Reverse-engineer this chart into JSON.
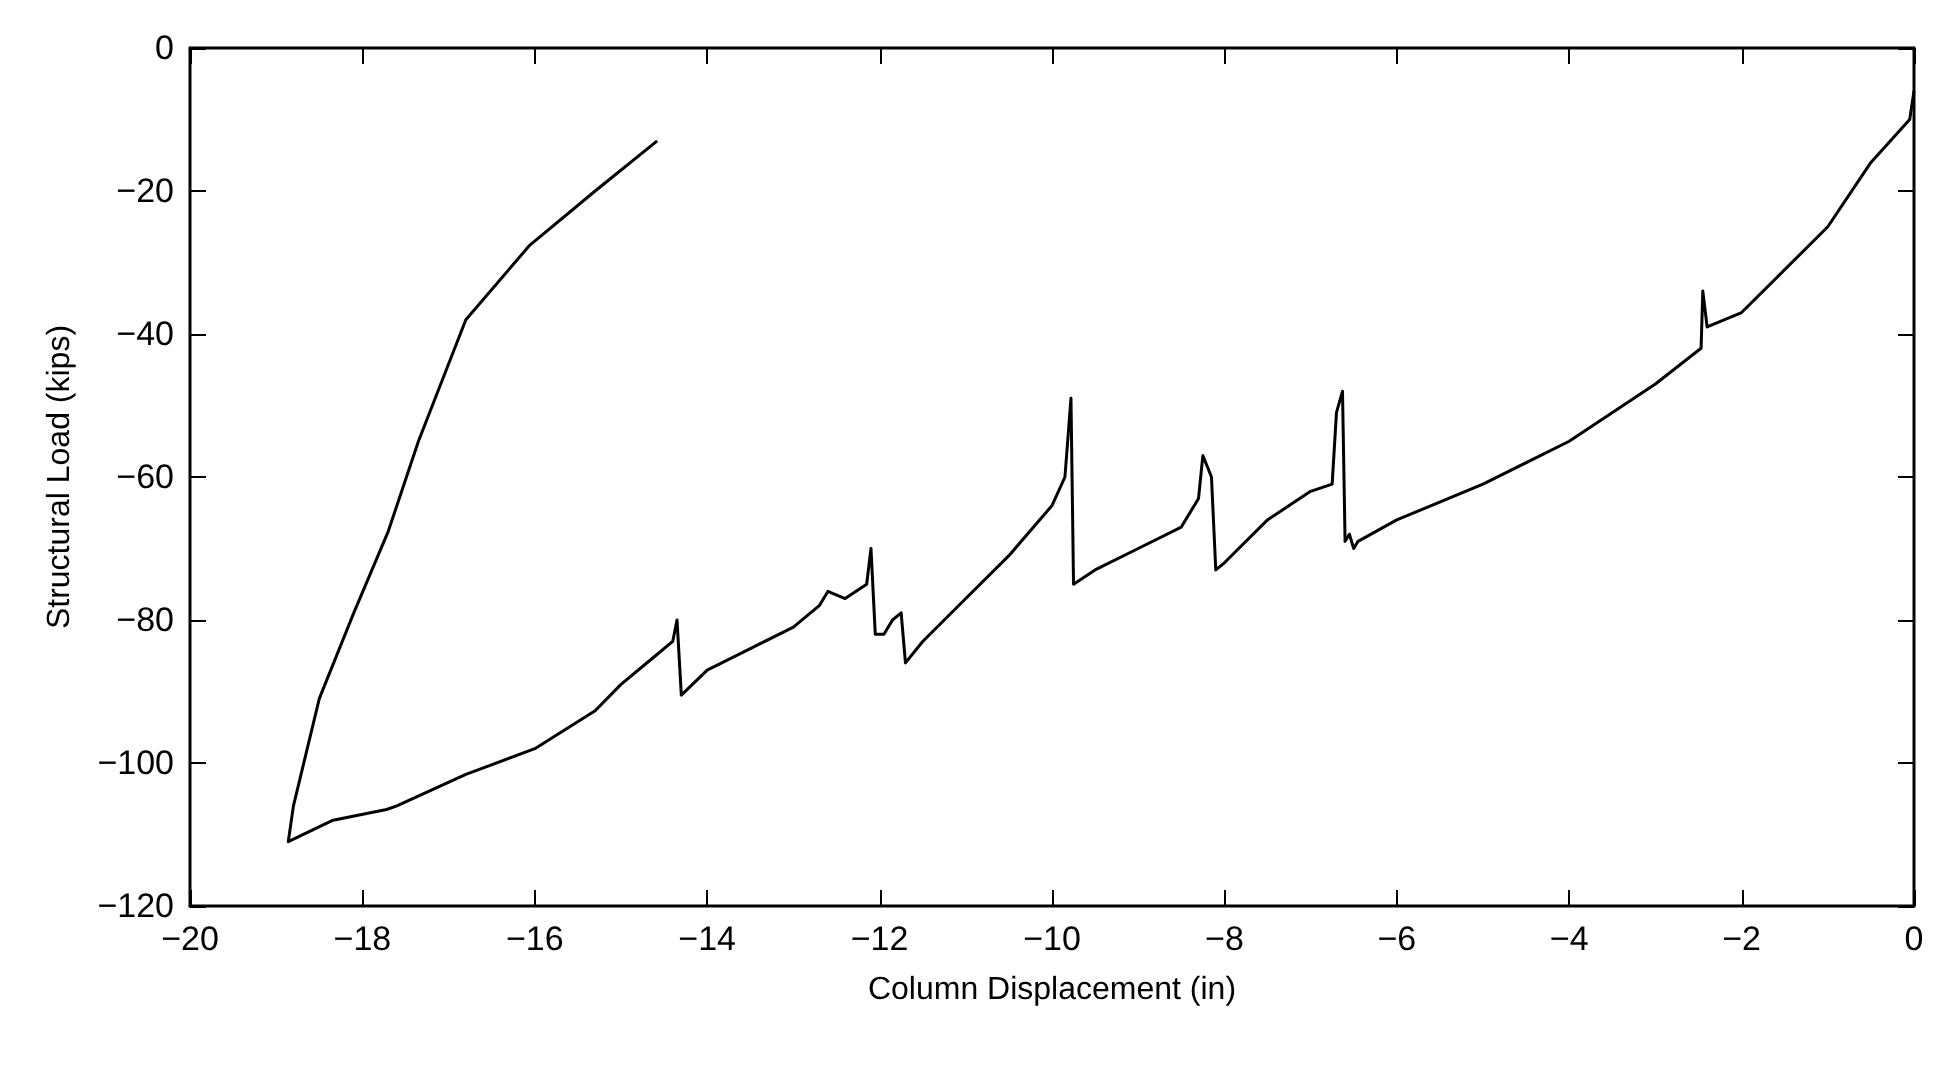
{
  "chart_data": {
    "type": "line",
    "xlabel": "Column Displacement (in)",
    "ylabel": "Structural Load (kips)",
    "xlim": [
      -20,
      0
    ],
    "xticks": [
      -20,
      -18,
      -16,
      -14,
      -12,
      -10,
      -8,
      -6,
      -4,
      -2,
      0
    ],
    "ylim": [
      -120,
      0
    ],
    "yticks": [
      -120,
      -100,
      -80,
      -60,
      -40,
      -20,
      0
    ],
    "marker": "none",
    "line_style": "solid",
    "series": [
      {
        "color": "#000000",
        "x": [
          0,
          -0.05,
          -0.5,
          -1,
          -1.5,
          -2,
          -2.4,
          -2.45,
          -2.47,
          -3,
          -4,
          -5,
          -6,
          -6.45,
          -6.5,
          -6.55,
          -6.6,
          -6.63,
          -6.7,
          -6.75,
          -7,
          -7.5,
          -8,
          -8.1,
          -8.15,
          -8.25,
          -8.3,
          -8.5,
          -9,
          -9.5,
          -9.75,
          -9.78,
          -9.85,
          -10,
          -10.5,
          -11,
          -11.5,
          -11.7,
          -11.75,
          -11.85,
          -11.95,
          -12.05,
          -12.1,
          -12.15,
          -12.4,
          -12.6,
          -12.7,
          -13,
          -13.5,
          -14,
          -14.3,
          -14.35,
          -14.4,
          -14.6,
          -15,
          -15.3,
          -16,
          -16.8,
          -17.6,
          -17.72,
          -18.34,
          -18.86,
          -18.8,
          -18.5,
          -18.1,
          -17.7,
          -17.35,
          -16.8,
          -16.06,
          -15.3,
          -14.58
        ],
        "values": [
          -6,
          -10,
          -16,
          -25,
          -31,
          -37,
          -39,
          -34,
          -42,
          -47,
          -55,
          -61,
          -66,
          -69,
          -70,
          -68,
          -69,
          -48,
          -51,
          -61,
          -62,
          -66,
          -72,
          -73,
          -60,
          -57,
          -63,
          -67,
          -70,
          -73,
          -75,
          -49,
          -60,
          -64,
          -71,
          -77,
          -83,
          -86,
          -79,
          -80,
          -82,
          -82,
          -70,
          -75,
          -77,
          -76,
          -78,
          -81,
          -84,
          -87,
          -90.5,
          -80,
          -83,
          -85,
          -89,
          -92.7,
          -98,
          -101.6,
          -106,
          -106.5,
          -108,
          -111,
          -106,
          -91,
          -79,
          -67.6,
          -55,
          -38,
          -27.6,
          -20,
          -13
        ]
      }
    ]
  }
}
